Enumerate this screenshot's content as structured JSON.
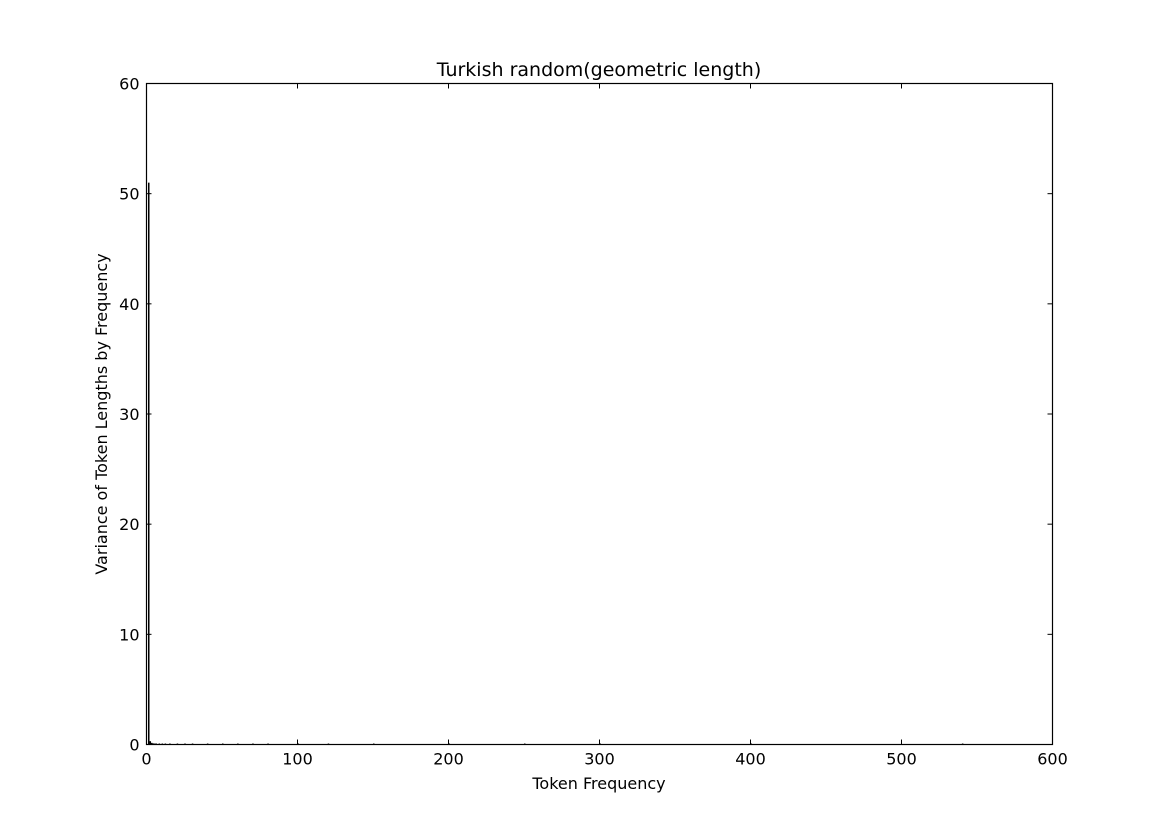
{
  "chart_data": {
    "type": "bar",
    "title": "Turkish random(geometric length)",
    "xlabel": "Token Frequency",
    "ylabel": "Variance of Token Lengths by Frequency",
    "xlim": [
      0,
      600
    ],
    "ylim": [
      0,
      60
    ],
    "xticks": [
      0,
      100,
      200,
      300,
      400,
      500,
      600
    ],
    "yticks": [
      0,
      10,
      20,
      30,
      40,
      50,
      60
    ],
    "grid": false,
    "bar_color": "#000000",
    "x": [
      1,
      2,
      3,
      4,
      5,
      6,
      8,
      10,
      12,
      15,
      20,
      25,
      30,
      40,
      50,
      60,
      70,
      80,
      100,
      120,
      150,
      200,
      250,
      300,
      400,
      540
    ],
    "values": [
      51,
      0.3,
      0.15,
      0.1,
      0.08,
      0.06,
      0.05,
      0.04,
      0.03,
      0.03,
      0.02,
      0.02,
      0.02,
      0.015,
      0.01,
      0.01,
      0.01,
      0.01,
      0.01,
      0.01,
      0.005,
      0.005,
      0.005,
      0.005,
      0.005,
      0.005
    ]
  }
}
